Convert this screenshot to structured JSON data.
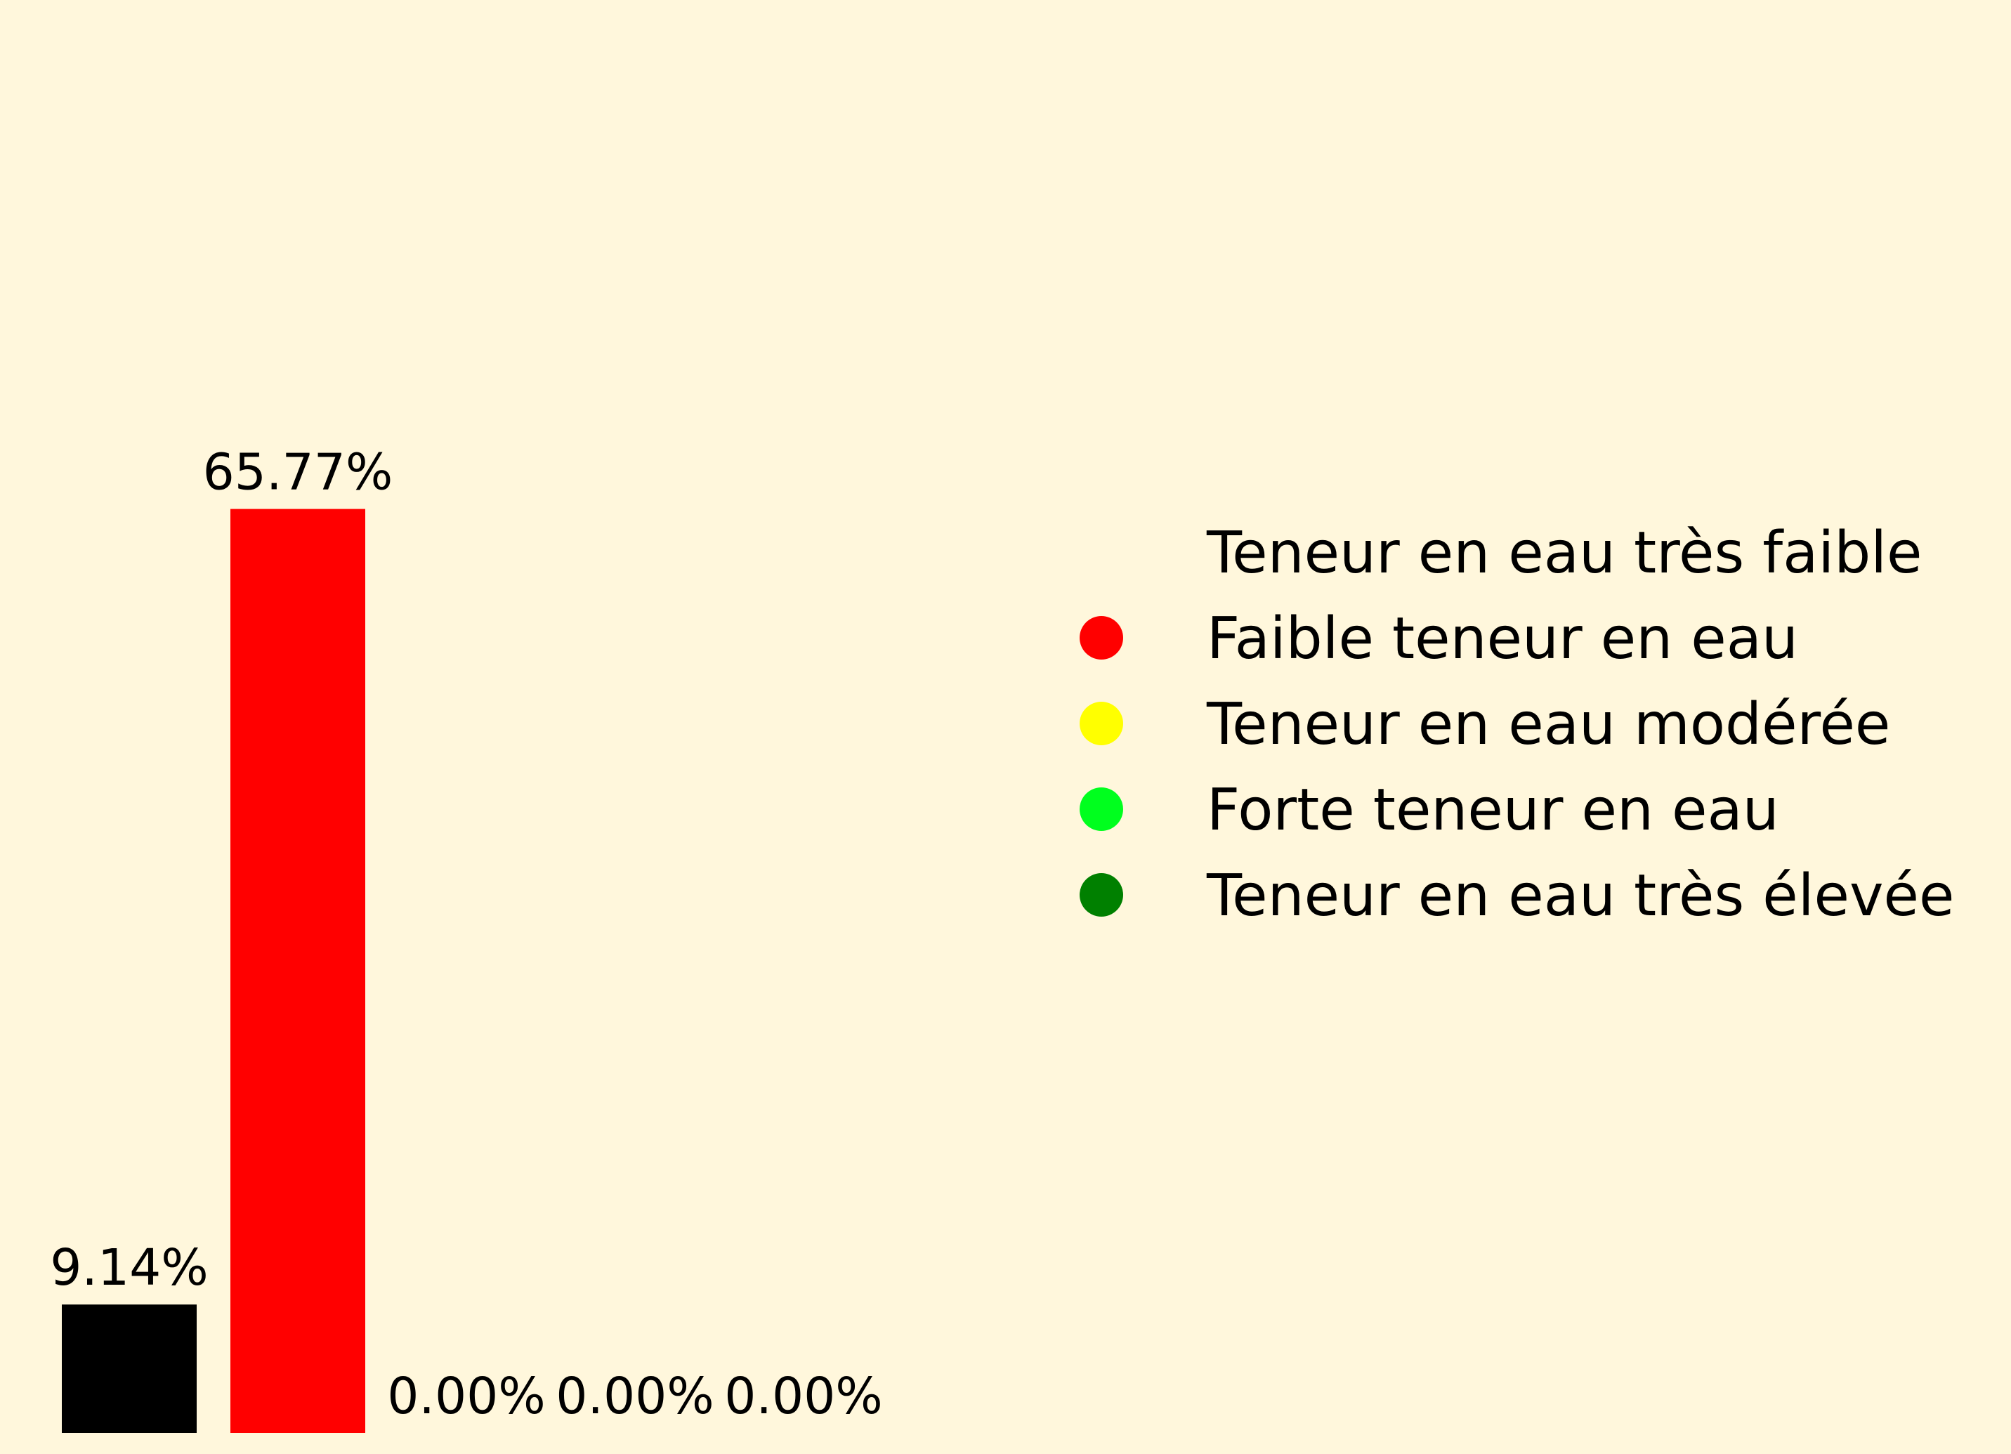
{
  "chart_data": {
    "type": "bar",
    "categories": [
      "Teneur en eau très faible",
      "Faible teneur en eau",
      "Teneur en eau modérée",
      "Forte teneur en eau",
      "Teneur en eau très élevée"
    ],
    "values": [
      9.14,
      65.77,
      0.0,
      0.0,
      0.0
    ],
    "data_labels": [
      "9.14%",
      "65.77%",
      "0.00%",
      "0.00%",
      "0.00%"
    ],
    "colors": [
      "#000000",
      "#FF0000",
      "#FFFF00",
      "#00FF1E",
      "#008000"
    ],
    "legend_colors": [
      "#FFF7DC",
      "#FF0000",
      "#FFFF00",
      "#00FF1E",
      "#008000"
    ],
    "title": "",
    "xlabel": "",
    "ylabel": "",
    "ylim": [
      0,
      100
    ],
    "axes_visible": false,
    "grid": false,
    "legend": {
      "placement": "right",
      "marker": "circle",
      "entries": [
        "Teneur en eau très faible",
        "Faible teneur en eau",
        "Teneur en eau modérée",
        "Forte teneur en eau",
        "Teneur en eau très élevée"
      ]
    }
  }
}
